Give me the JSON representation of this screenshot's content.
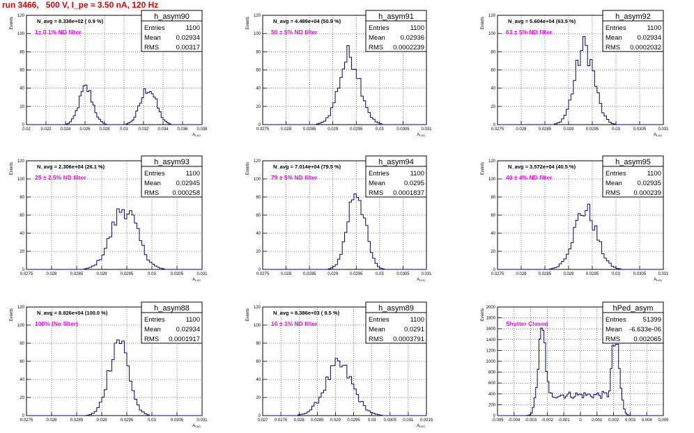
{
  "run_title": "run 3466,   500 V, I_pe ≈ 3.50 nA, 120 Hz",
  "colors": {
    "histogram_line": "#000080",
    "note_text": "#ff00ff",
    "run_title": "#e00000",
    "grid": "#000000"
  },
  "stat_labels": {
    "entries": "Entries",
    "mean": "Mean",
    "rms": "RMS"
  },
  "chart_data": [
    {
      "type": "histogram",
      "name": "h_asym90",
      "stats": {
        "entries": "1100",
        "mean": "0.02934",
        "rms": "0.00317"
      },
      "n_avg_label": "N_avg = 8.338e+02 ( 0.9 %)",
      "note": "1± 0.1% ND filter",
      "ylabel": "Events",
      "xlabel": "A_{LED}",
      "xlim": [
        0.02,
        0.038
      ],
      "ylim": [
        0,
        120
      ],
      "xticks": [
        0.02,
        0.022,
        0.024,
        0.026,
        0.028,
        0.03,
        0.032,
        0.034,
        0.036,
        0.038
      ],
      "xtick_labels": [
        "0.02",
        "0.022",
        "0.024",
        "0.026",
        "0.028",
        "0.03",
        "0.032",
        "0.034",
        "0.036",
        "0.038"
      ],
      "yticks": [
        0,
        20,
        40,
        60,
        80,
        100,
        120
      ],
      "peaks": [
        {
          "mean": 0.0261,
          "sigma": 0.0007,
          "height": 40
        },
        {
          "mean": 0.0325,
          "sigma": 0.0008,
          "height": 40
        }
      ]
    },
    {
      "type": "histogram",
      "name": "h_asym91",
      "stats": {
        "entries": "1100",
        "mean": "0.02936",
        "rms": "0.0002239"
      },
      "n_avg_label": "N_avg = 4.489e+04 (50.9 %)",
      "note": "50 ± 5% ND filter",
      "ylabel": "Events",
      "xlabel": "A_{LED}",
      "xlim": [
        0.0275,
        0.031
      ],
      "ylim": [
        0,
        120
      ],
      "xticks": [
        0.0275,
        0.028,
        0.0285,
        0.029,
        0.0295,
        0.03,
        0.0305,
        0.031
      ],
      "xtick_labels": [
        "0.0275",
        "0.028",
        "0.0285",
        "0.029",
        "0.0295",
        "0.03",
        "0.0305",
        "0.031"
      ],
      "yticks": [
        0,
        20,
        40,
        60,
        80,
        100,
        120
      ],
      "peaks": [
        {
          "mean": 0.02936,
          "sigma": 0.000224,
          "height": 76
        }
      ]
    },
    {
      "type": "histogram",
      "name": "h_asym92",
      "stats": {
        "entries": "1100",
        "mean": "0.02934",
        "rms": "0.0002032"
      },
      "n_avg_label": "N_avg = 5.604e+04 (63.5 %)",
      "note": "63 ± 5% ND filter",
      "ylabel": "Events",
      "xlabel": "A_{LED}",
      "xlim": [
        0.0275,
        0.031
      ],
      "ylim": [
        0,
        120
      ],
      "xticks": [
        0.0275,
        0.028,
        0.0285,
        0.029,
        0.0295,
        0.03,
        0.0305,
        0.031
      ],
      "xtick_labels": [
        "0.0275",
        "0.028",
        "0.0285",
        "0.029",
        "0.0295",
        "0.03",
        "0.0305",
        "0.031"
      ],
      "yticks": [
        0,
        20,
        40,
        60,
        80,
        100,
        120
      ],
      "peaks": [
        {
          "mean": 0.02934,
          "sigma": 0.000203,
          "height": 85
        }
      ]
    },
    {
      "type": "histogram",
      "name": "h_asym93",
      "stats": {
        "entries": "1100",
        "mean": "0.02945",
        "rms": "0.000258"
      },
      "n_avg_label": "N_avg = 2.306e+04 (26.1 %)",
      "note": "25 ± 2.5% ND filter",
      "ylabel": "Events",
      "xlabel": "A_{LED}",
      "xlim": [
        0.0275,
        0.031
      ],
      "ylim": [
        0,
        120
      ],
      "xticks": [
        0.0275,
        0.028,
        0.0285,
        0.029,
        0.0295,
        0.03,
        0.0305,
        0.031
      ],
      "xtick_labels": [
        "0.0275",
        "0.028",
        "0.0285",
        "0.029",
        "0.0295",
        "0.03",
        "0.0305",
        "0.031"
      ],
      "yticks": [
        0,
        20,
        40,
        60,
        80,
        100,
        120
      ],
      "peaks": [
        {
          "mean": 0.02945,
          "sigma": 0.000258,
          "height": 68
        }
      ]
    },
    {
      "type": "histogram",
      "name": "h_asym94",
      "stats": {
        "entries": "1100",
        "mean": "0.0295",
        "rms": "0.0001837"
      },
      "n_avg_label": "N_avg = 7.014e+04 (79.5 %)",
      "note": "79 ± 5% ND filter",
      "ylabel": "Events",
      "xlabel": "A_{LED}",
      "xlim": [
        0.0275,
        0.031
      ],
      "ylim": [
        0,
        120
      ],
      "xticks": [
        0.0275,
        0.028,
        0.0285,
        0.029,
        0.0295,
        0.03,
        0.0305,
        0.031
      ],
      "xtick_labels": [
        "0.0275",
        "0.028",
        "0.0285",
        "0.029",
        "0.0295",
        "0.03",
        "0.0305",
        "0.031"
      ],
      "yticks": [
        0,
        20,
        40,
        60,
        80,
        100,
        120
      ],
      "peaks": [
        {
          "mean": 0.0295,
          "sigma": 0.000184,
          "height": 88
        }
      ]
    },
    {
      "type": "histogram",
      "name": "h_asym95",
      "stats": {
        "entries": "1100",
        "mean": "0.02935",
        "rms": "0.000239"
      },
      "n_avg_label": "N_avg = 3.572e+04 (40.5 %)",
      "note": "40 ± 4% ND filter",
      "ylabel": "Events",
      "xlabel": "A_{LED}",
      "xlim": [
        0.0275,
        0.031
      ],
      "ylim": [
        0,
        120
      ],
      "xticks": [
        0.0275,
        0.028,
        0.0285,
        0.029,
        0.0295,
        0.03,
        0.0305,
        0.031
      ],
      "xtick_labels": [
        "0.0275",
        "0.028",
        "0.0285",
        "0.029",
        "0.0295",
        "0.03",
        "0.0305",
        "0.031"
      ],
      "yticks": [
        0,
        20,
        40,
        60,
        80,
        100,
        120
      ],
      "peaks": [
        {
          "mean": 0.02935,
          "sigma": 0.000239,
          "height": 66
        }
      ]
    },
    {
      "type": "histogram",
      "name": "h_asym88",
      "stats": {
        "entries": "1100",
        "mean": "0.02934",
        "rms": "0.0001917"
      },
      "n_avg_label": "N_avg = 8.826e+04 (100.0 %)",
      "note": "100% (No filter)",
      "ylabel": "Events",
      "xlabel": "A_{LED}",
      "xlim": [
        0.0275,
        0.031
      ],
      "ylim": [
        0,
        120
      ],
      "xticks": [
        0.0275,
        0.028,
        0.0285,
        0.029,
        0.0295,
        0.03,
        0.0305,
        0.031
      ],
      "xtick_labels": [
        "0.0275",
        "0.028",
        "0.0285",
        "0.029",
        "0.0295",
        "0.03",
        "0.0305",
        "0.031"
      ],
      "yticks": [
        0,
        20,
        40,
        60,
        80,
        100,
        120
      ],
      "peaks": [
        {
          "mean": 0.02934,
          "sigma": 0.000192,
          "height": 85
        }
      ]
    },
    {
      "type": "histogram",
      "name": "h_asym89",
      "stats": {
        "entries": "1100",
        "mean": "0.0291",
        "rms": "0.0003791"
      },
      "n_avg_label": "N_avg = 8.386e+03 ( 9.5 %)",
      "note": "10 ± 1% ND filter",
      "ylabel": "Events",
      "xlabel": "A_{LED}",
      "xlim": [
        0.027,
        0.0315
      ],
      "ylim": [
        0,
        120
      ],
      "xticks": [
        0.027,
        0.0275,
        0.028,
        0.0285,
        0.029,
        0.0295,
        0.03,
        0.0305,
        0.031,
        0.0315
      ],
      "xtick_labels": [
        "0.027",
        "0.0275",
        "0.028",
        "0.0285",
        "0.029",
        "0.0295",
        "0.03",
        "0.0305",
        "0.031",
        "0.0315"
      ],
      "yticks": [
        0,
        20,
        40,
        60,
        80,
        100,
        120
      ],
      "peaks": [
        {
          "mean": 0.0291,
          "sigma": 0.000379,
          "height": 55
        }
      ]
    },
    {
      "type": "histogram",
      "name": "hPed_asym",
      "stats": {
        "entries": "51399",
        "mean": "-6.633e-06",
        "rms": "0.002065"
      },
      "note": "Shutter Closed",
      "ylabel": "Events",
      "xlabel": "",
      "xlim": [
        -0.005,
        0.005
      ],
      "ylim": [
        0,
        2000
      ],
      "xticks": [
        -0.005,
        -0.004,
        -0.003,
        -0.002,
        -0.001,
        0,
        0.001,
        0.002,
        0.003,
        0.004,
        0.005
      ],
      "xtick_labels": [
        "-0.005",
        "-0.004",
        "-0.003",
        "-0.002",
        "-0.001",
        "0",
        "0.001",
        "0.002",
        "0.003",
        "0.004",
        "0.005"
      ],
      "yticks": [
        0,
        200,
        400,
        600,
        800,
        1000,
        1200,
        1400,
        1600,
        1800,
        2000
      ],
      "baseline": 380,
      "peaks": [
        {
          "mean": -0.0023,
          "sigma": 0.00025,
          "height": 1500
        },
        {
          "mean": 0.0021,
          "sigma": 0.00025,
          "height": 1350
        }
      ]
    }
  ]
}
